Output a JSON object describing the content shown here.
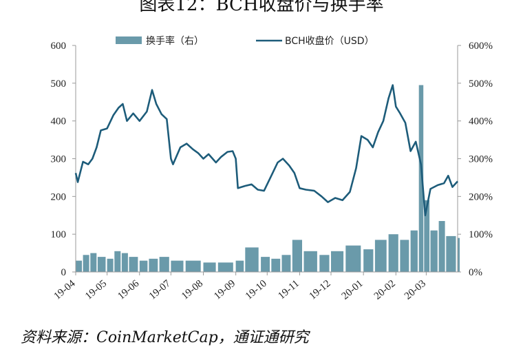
{
  "header": {
    "title": "图表12：BCH收盘价与换手率"
  },
  "footer": {
    "source": "资料来源：CoinMarketCap，通证通研究"
  },
  "colors": {
    "price_line": "#1d5c7a",
    "turnover_bar": "#6a9aaa",
    "axis": "#999999"
  },
  "chart_data": {
    "type": "line",
    "title": "图表12：BCH收盘价与换手率",
    "x_range": [
      "2019-04-01",
      "2020-03-31"
    ],
    "x_tick_labels": [
      "19-04",
      "19-05",
      "19-06",
      "19-07",
      "19-08",
      "19-09",
      "19-10",
      "19-11",
      "19-12",
      "20-01",
      "20-02",
      "20-03"
    ],
    "y_left": {
      "min": 0,
      "max": 600,
      "ticks": [
        "0",
        "100",
        "200",
        "300",
        "400",
        "500",
        "600"
      ]
    },
    "y_right": {
      "min": 0,
      "max": 6,
      "ticks": [
        "0%",
        "100%",
        "200%",
        "300%",
        "400%",
        "500%",
        "600%"
      ]
    },
    "legend": {
      "placement": "top-center"
    },
    "grid": false,
    "series": [
      {
        "name": "换手率（右）",
        "type": "bar",
        "axis": "right",
        "points": [
          [
            "2019-04-01",
            0.3
          ],
          [
            "2019-04-08",
            0.45
          ],
          [
            "2019-04-15",
            0.5
          ],
          [
            "2019-04-22",
            0.4
          ],
          [
            "2019-05-01",
            0.35
          ],
          [
            "2019-05-08",
            0.55
          ],
          [
            "2019-05-15",
            0.5
          ],
          [
            "2019-05-22",
            0.4
          ],
          [
            "2019-06-01",
            0.3
          ],
          [
            "2019-06-10",
            0.35
          ],
          [
            "2019-06-20",
            0.4
          ],
          [
            "2019-07-01",
            0.3
          ],
          [
            "2019-07-15",
            0.3
          ],
          [
            "2019-08-01",
            0.25
          ],
          [
            "2019-08-15",
            0.25
          ],
          [
            "2019-09-01",
            0.3
          ],
          [
            "2019-09-10",
            0.65
          ],
          [
            "2019-09-25",
            0.4
          ],
          [
            "2019-10-05",
            0.35
          ],
          [
            "2019-10-15",
            0.45
          ],
          [
            "2019-10-25",
            0.85
          ],
          [
            "2019-11-05",
            0.55
          ],
          [
            "2019-11-20",
            0.45
          ],
          [
            "2019-12-01",
            0.55
          ],
          [
            "2019-12-15",
            0.7
          ],
          [
            "2020-01-01",
            0.6
          ],
          [
            "2020-01-12",
            0.85
          ],
          [
            "2020-01-25",
            1.0
          ],
          [
            "2020-02-05",
            0.85
          ],
          [
            "2020-02-15",
            1.1
          ],
          [
            "2020-02-23",
            4.95
          ],
          [
            "2020-02-28",
            1.9
          ],
          [
            "2020-03-05",
            1.1
          ],
          [
            "2020-03-13",
            1.35
          ],
          [
            "2020-03-20",
            0.95
          ],
          [
            "2020-03-31",
            0.9
          ]
        ]
      },
      {
        "name": "BCH收盘价（USD）",
        "type": "line",
        "axis": "left",
        "points": [
          [
            "2019-04-01",
            262
          ],
          [
            "2019-04-03",
            238
          ],
          [
            "2019-04-08",
            292
          ],
          [
            "2019-04-13",
            285
          ],
          [
            "2019-04-17",
            300
          ],
          [
            "2019-04-21",
            330
          ],
          [
            "2019-04-25",
            375
          ],
          [
            "2019-05-01",
            380
          ],
          [
            "2019-05-07",
            415
          ],
          [
            "2019-05-12",
            435
          ],
          [
            "2019-05-16",
            445
          ],
          [
            "2019-05-20",
            400
          ],
          [
            "2019-05-26",
            420
          ],
          [
            "2019-06-01",
            400
          ],
          [
            "2019-06-08",
            425
          ],
          [
            "2019-06-13",
            482
          ],
          [
            "2019-06-17",
            445
          ],
          [
            "2019-06-22",
            418
          ],
          [
            "2019-06-27",
            405
          ],
          [
            "2019-07-01",
            300
          ],
          [
            "2019-07-03",
            285
          ],
          [
            "2019-07-10",
            330
          ],
          [
            "2019-07-16",
            340
          ],
          [
            "2019-07-22",
            325
          ],
          [
            "2019-07-27",
            315
          ],
          [
            "2019-08-01",
            300
          ],
          [
            "2019-08-06",
            312
          ],
          [
            "2019-08-13",
            290
          ],
          [
            "2019-08-18",
            305
          ],
          [
            "2019-08-24",
            318
          ],
          [
            "2019-08-29",
            320
          ],
          [
            "2019-09-01",
            300
          ],
          [
            "2019-09-03",
            222
          ],
          [
            "2019-09-10",
            228
          ],
          [
            "2019-09-16",
            232
          ],
          [
            "2019-09-22",
            218
          ],
          [
            "2019-09-28",
            215
          ],
          [
            "2019-10-05",
            255
          ],
          [
            "2019-10-11",
            290
          ],
          [
            "2019-10-16",
            300
          ],
          [
            "2019-10-22",
            282
          ],
          [
            "2019-10-27",
            262
          ],
          [
            "2019-11-01",
            222
          ],
          [
            "2019-11-07",
            218
          ],
          [
            "2019-11-15",
            215
          ],
          [
            "2019-11-22",
            200
          ],
          [
            "2019-11-28",
            185
          ],
          [
            "2019-12-05",
            196
          ],
          [
            "2019-12-12",
            190
          ],
          [
            "2019-12-19",
            212
          ],
          [
            "2019-12-25",
            275
          ],
          [
            "2019-12-30",
            360
          ],
          [
            "2020-01-05",
            350
          ],
          [
            "2020-01-10",
            330
          ],
          [
            "2020-01-15",
            370
          ],
          [
            "2020-01-20",
            400
          ],
          [
            "2020-01-25",
            460
          ],
          [
            "2020-01-29",
            495
          ],
          [
            "2020-02-01",
            438
          ],
          [
            "2020-02-05",
            420
          ],
          [
            "2020-02-10",
            395
          ],
          [
            "2020-02-15",
            320
          ],
          [
            "2020-02-20",
            345
          ],
          [
            "2020-02-25",
            285
          ],
          [
            "2020-02-29",
            150
          ],
          [
            "2020-03-05",
            220
          ],
          [
            "2020-03-12",
            230
          ],
          [
            "2020-03-18",
            235
          ],
          [
            "2020-03-22",
            255
          ],
          [
            "2020-03-26",
            225
          ],
          [
            "2020-03-31",
            240
          ]
        ]
      }
    ]
  }
}
